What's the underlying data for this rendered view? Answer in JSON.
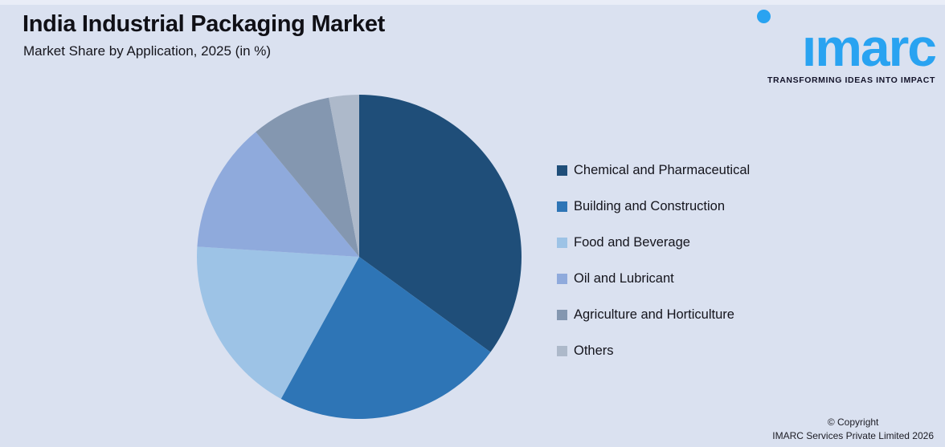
{
  "header": {
    "title": "India Industrial Packaging Market",
    "subtitle": "Market Share by Application, 2025 (in %)"
  },
  "logo": {
    "brand": "imarc",
    "tagline": "TRANSFORMING IDEAS INTO IMPACT",
    "brand_color": "#29A3F1"
  },
  "footer": {
    "copyright_line1": "© Copyright",
    "copyright_line2": "IMARC Services Private Limited 2026"
  },
  "theme": {
    "background": "#DAE1F0",
    "text_dark": "#14141c"
  },
  "chart_data": {
    "type": "pie",
    "title": "India Industrial Packaging Market",
    "subtitle": "Market Share by Application, 2025 (in %)",
    "unit": "%",
    "start_angle_deg": 0,
    "direction": "clockwise",
    "legend_position": "right",
    "labels": [
      "Chemical and Pharmaceutical",
      "Building and Construction",
      "Food and Beverage",
      "Oil and Lubricant",
      "Agriculture and Horticulture",
      "Others"
    ],
    "values": [
      35,
      23,
      18,
      13,
      8,
      3
    ],
    "colors": [
      "#1F4E79",
      "#2E75B6",
      "#9DC3E6",
      "#8FAADC",
      "#8497B0",
      "#ADB9CA"
    ]
  }
}
